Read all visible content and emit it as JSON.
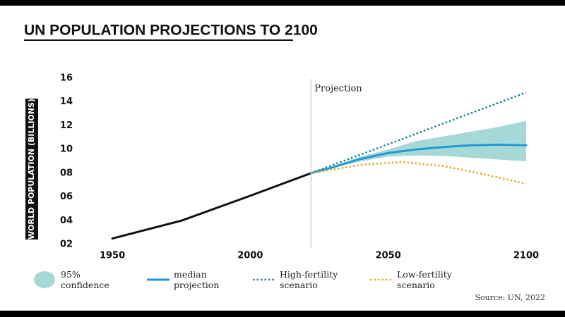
{
  "chart_data": {
    "type": "line",
    "title": "UN POPULATION PROJECTIONS TO 2100",
    "y_label": "WORLD POPULATION (BILLIONS)",
    "source": "Source: UN, 2022",
    "annotation": "Projection",
    "annotation_x": 2022,
    "xlim": [
      1940,
      2105
    ],
    "xticks": [
      1950,
      2000,
      2050,
      2100
    ],
    "ylim": [
      2,
      16
    ],
    "yticks": [
      {
        "value": 2,
        "label": "02"
      },
      {
        "value": 4,
        "label": "04"
      },
      {
        "value": 6,
        "label": "06"
      },
      {
        "value": 8,
        "label": "08"
      },
      10,
      12,
      14,
      16
    ],
    "series": [
      {
        "color": "#111111",
        "style": "solid",
        "x": [
          1950,
          1975,
          2000,
          2022
        ],
        "values": [
          2.5,
          4.0,
          6.1,
          8.0
        ]
      },
      {
        "name": "95% confidence",
        "type": "band",
        "color": "#a6d8d8",
        "x": [
          2022,
          2030,
          2040,
          2050,
          2060,
          2070,
          2080,
          2090,
          2100
        ],
        "lower": [
          8.0,
          8.5,
          9.0,
          9.4,
          9.5,
          9.45,
          9.3,
          9.15,
          9.0
        ],
        "upper": [
          8.0,
          8.6,
          9.4,
          10.0,
          10.7,
          11.1,
          11.5,
          11.9,
          12.4
        ]
      },
      {
        "name": "median projection",
        "color": "#1e9ad6",
        "style": "solid",
        "x": [
          2022,
          2030,
          2040,
          2050,
          2060,
          2070,
          2080,
          2090,
          2100
        ],
        "values": [
          8.0,
          8.5,
          9.2,
          9.7,
          10.0,
          10.2,
          10.35,
          10.4,
          10.35
        ]
      },
      {
        "name": "High-fertility scenario",
        "color": "#1a7f8e",
        "style": "dotted",
        "x": [
          2022,
          2100
        ],
        "values": [
          8.0,
          14.8
        ]
      },
      {
        "name": "Low-fertility scenario",
        "color": "#e8a628",
        "style": "dotted",
        "x": [
          2022,
          2040,
          2055,
          2070,
          2085,
          2100
        ],
        "values": [
          8.0,
          8.7,
          8.95,
          8.6,
          7.9,
          7.1
        ]
      }
    ]
  }
}
